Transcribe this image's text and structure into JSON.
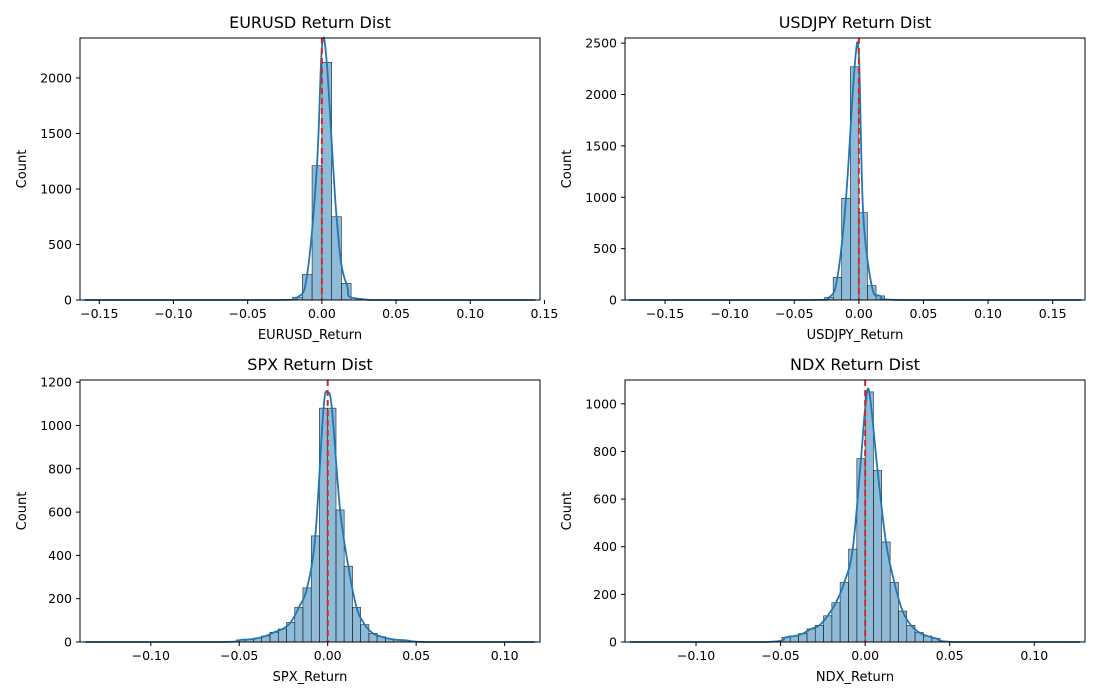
{
  "chart_data": [
    {
      "type": "histogram",
      "title": "EURUSD Return Dist",
      "xlabel": "EURUSD_Return",
      "ylabel": "Count",
      "xlim": [
        -0.163,
        0.147
      ],
      "ylim": [
        0,
        2360
      ],
      "xticks": [
        -0.15,
        -0.1,
        -0.05,
        0.0,
        0.05,
        0.1,
        0.15
      ],
      "xtick_labels": [
        "−0.15",
        "−0.10",
        "−0.05",
        "0.00",
        "0.05",
        "0.10",
        "0.15"
      ],
      "yticks": [
        0,
        500,
        1000,
        1500,
        2000
      ],
      "ytick_labels": [
        "0",
        "500",
        "1000",
        "1500",
        "2000"
      ],
      "bin_edges": [
        -0.0197,
        -0.0132,
        -0.0066,
        0.0,
        0.0066,
        0.0132,
        0.0197
      ],
      "counts": [
        25,
        230,
        1210,
        2140,
        750,
        150
      ],
      "kde_peak": 2270,
      "mean_line": 0.0
    },
    {
      "type": "histogram",
      "title": "USDJPY Return Dist",
      "xlabel": "USDJPY_Return",
      "ylabel": "Count",
      "xlim": [
        -0.181,
        0.175
      ],
      "ylim": [
        0,
        2550
      ],
      "xticks": [
        -0.15,
        -0.1,
        -0.05,
        0.0,
        0.05,
        0.1,
        0.15
      ],
      "xtick_labels": [
        "−0.15",
        "−0.10",
        "−0.05",
        "0.00",
        "0.05",
        "0.10",
        "0.15"
      ],
      "yticks": [
        0,
        500,
        1000,
        1500,
        2000,
        2500
      ],
      "ytick_labels": [
        "0",
        "500",
        "1000",
        "1500",
        "2000",
        "2500"
      ],
      "bin_edges": [
        -0.0265,
        -0.0199,
        -0.0133,
        -0.0066,
        0.0,
        0.0066,
        0.0133,
        0.0199
      ],
      "counts": [
        25,
        220,
        990,
        2270,
        850,
        140,
        40
      ],
      "kde_peak": 2380,
      "mean_line": 0.0
    },
    {
      "type": "histogram",
      "title": "SPX Return Dist",
      "xlabel": "SPX_Return",
      "ylabel": "Count",
      "xlim": [
        -0.14,
        0.12
      ],
      "ylim": [
        0,
        1210
      ],
      "xticks": [
        -0.1,
        -0.05,
        0.0,
        0.05,
        0.1
      ],
      "xtick_labels": [
        "−0.10",
        "−0.05",
        "0.00",
        "0.05",
        "0.10"
      ],
      "yticks": [
        0,
        200,
        400,
        600,
        800,
        1000,
        1200
      ],
      "ytick_labels": [
        "0",
        "200",
        "400",
        "600",
        "800",
        "1000",
        "1200"
      ],
      "bin_edges": [
        -0.0513,
        -0.0466,
        -0.0419,
        -0.0373,
        -0.0326,
        -0.0279,
        -0.0233,
        -0.0186,
        -0.014,
        -0.0093,
        -0.0047,
        0.0,
        0.0047,
        0.0093,
        0.014,
        0.0186,
        0.0233,
        0.0279,
        0.0326,
        0.0373,
        0.0419,
        0.0466
      ],
      "counts": [
        10,
        12,
        18,
        28,
        45,
        60,
        90,
        160,
        250,
        490,
        1080,
        1080,
        610,
        350,
        160,
        80,
        40,
        25,
        15,
        10,
        8
      ],
      "kde_peak": 1150,
      "mean_line": 0.0
    },
    {
      "type": "histogram",
      "title": "NDX Return Dist",
      "xlabel": "NDX_Return",
      "ylabel": "Count",
      "xlim": [
        -0.142,
        0.13
      ],
      "ylim": [
        0,
        1100
      ],
      "xticks": [
        -0.1,
        -0.05,
        0.0,
        0.05,
        0.1
      ],
      "xtick_labels": [
        "−0.10",
        "−0.05",
        "0.00",
        "0.05",
        "0.10"
      ],
      "yticks": [
        0,
        200,
        400,
        600,
        800,
        1000
      ],
      "ytick_labels": [
        "0",
        "200",
        "400",
        "600",
        "800",
        "1000"
      ],
      "bin_edges": [
        -0.0492,
        -0.0443,
        -0.0394,
        -0.0344,
        -0.0295,
        -0.0246,
        -0.0197,
        -0.0148,
        -0.0098,
        -0.0049,
        0.0,
        0.0049,
        0.0098,
        0.0148,
        0.0197,
        0.0246,
        0.0295,
        0.0344,
        0.0394,
        0.0443
      ],
      "counts": [
        20,
        25,
        35,
        55,
        70,
        110,
        165,
        250,
        390,
        770,
        1050,
        720,
        420,
        250,
        130,
        70,
        40,
        25,
        15
      ],
      "kde_peak": 980,
      "mean_line": 0.0
    }
  ]
}
